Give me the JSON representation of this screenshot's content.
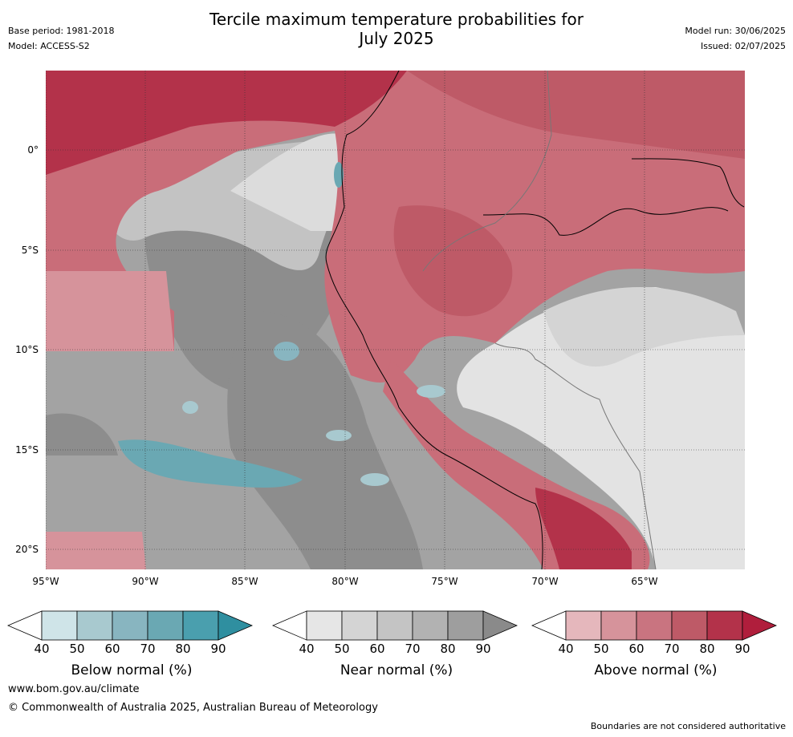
{
  "header": {
    "title_line1": "Tercile maximum temperature probabilities for",
    "title_line2": "July 2025",
    "base_period": "Base period: 1981-2018",
    "model": "Model: ACCESS-S2",
    "model_run": "Model run: 30/06/2025",
    "issued": "Issued: 02/07/2025"
  },
  "map": {
    "lat_labels": [
      "0°",
      "5°S",
      "10°S",
      "15°S",
      "20°S"
    ],
    "lon_labels": [
      "95°W",
      "90°W",
      "85°W",
      "80°W",
      "75°W",
      "70°W",
      "65°W"
    ]
  },
  "colorbars": [
    {
      "name": "below",
      "title": "Below normal (%)",
      "ticks": [
        "40",
        "50",
        "60",
        "70",
        "80",
        "90"
      ],
      "colors": [
        "#cfe4e8",
        "#a8c9cf",
        "#88b5c0",
        "#6aa8b3",
        "#4a9fae",
        "#2f8fa0"
      ]
    },
    {
      "name": "near",
      "title": "Near normal (%)",
      "ticks": [
        "40",
        "50",
        "60",
        "70",
        "80",
        "90"
      ],
      "colors": [
        "#e6e6e6",
        "#d4d4d4",
        "#c4c4c4",
        "#b2b2b2",
        "#9e9e9e",
        "#8a8a8a"
      ]
    },
    {
      "name": "above",
      "title": "Above normal (%)",
      "ticks": [
        "40",
        "50",
        "60",
        "70",
        "80",
        "90"
      ],
      "colors": [
        "#e5b7bc",
        "#d6939b",
        "#c97480",
        "#be5a67",
        "#b3324a",
        "#b01e3c"
      ]
    }
  ],
  "footer": {
    "url": "www.bom.gov.au/climate",
    "copyright": "© Commonwealth of Australia 2025, Australian Bureau of Meteorology",
    "note": "Boundaries are not considered authoritative"
  }
}
